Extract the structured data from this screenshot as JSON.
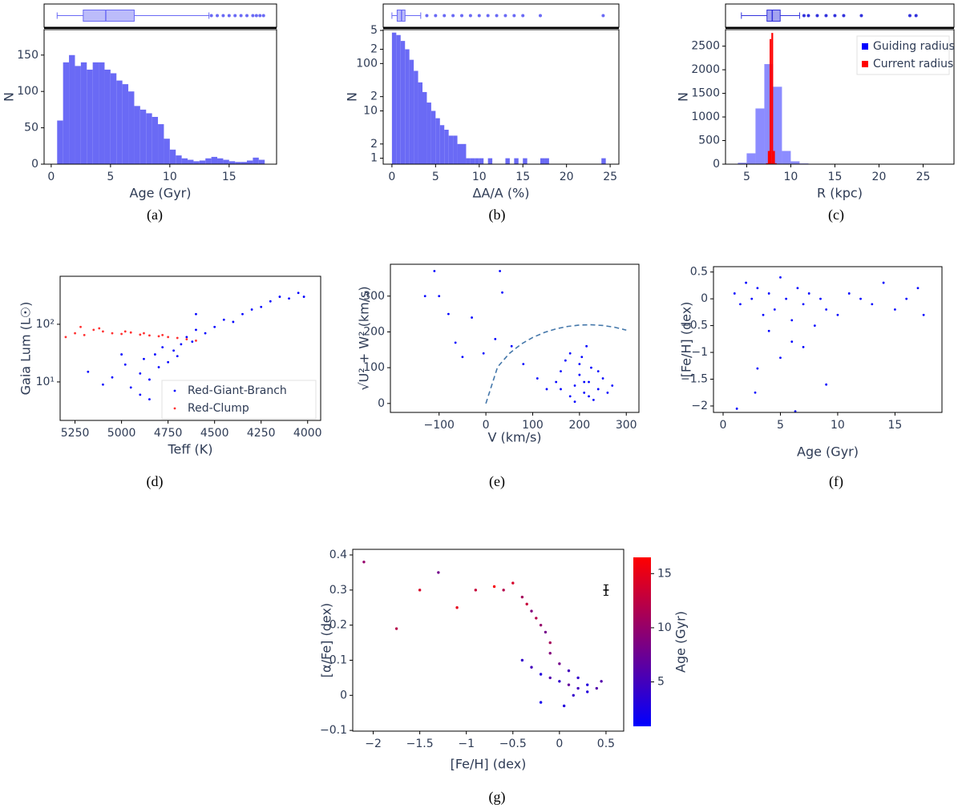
{
  "chart_data": [
    {
      "type": "histogram",
      "caption": "(a)",
      "xlabel": "Age (Gyr)",
      "ylabel": "N",
      "xlim": [
        -0.6,
        19
      ],
      "ylim": [
        0,
        185
      ],
      "xticks": [
        0,
        5,
        10,
        15
      ],
      "yticks": [
        0,
        50,
        100,
        150
      ],
      "series": [
        {
          "color": "#6a6af5",
          "bins": [
            0.5,
            1,
            1.5,
            2,
            2.5,
            3,
            3.5,
            4,
            4.5,
            5,
            5.5,
            6,
            6.5,
            7,
            7.5,
            8,
            8.5,
            9,
            9.5,
            10,
            10.5,
            11,
            11.5,
            12,
            12.5,
            13,
            13.5,
            14,
            14.5,
            15,
            15.5,
            16,
            16.5,
            17,
            17.5,
            18
          ],
          "values": [
            60,
            140,
            150,
            135,
            140,
            130,
            140,
            140,
            130,
            125,
            115,
            110,
            100,
            80,
            75,
            70,
            65,
            55,
            35,
            20,
            12,
            8,
            6,
            4,
            5,
            8,
            10,
            8,
            6,
            4,
            3,
            3,
            5,
            9,
            6
          ]
        }
      ],
      "boxplot": {
        "color": "#6a6af5",
        "whislo": 0.5,
        "q1": 2.7,
        "med": 4.6,
        "q3": 7.0,
        "whishi": 13.3,
        "fliers": [
          13.5,
          14,
          14.5,
          15,
          15.5,
          16,
          16.5,
          17,
          17.3,
          17.6,
          17.9
        ]
      }
    },
    {
      "type": "histogram",
      "caption": "(b)",
      "xlabel": "ΔA/A (%)",
      "ylabel": "N",
      "yscale": "log",
      "xlim": [
        -1,
        26
      ],
      "ylim": [
        0.75,
        520
      ],
      "xticks": [
        0,
        5,
        10,
        15,
        20,
        25
      ],
      "yticks": [
        1,
        2,
        10,
        {
          "value": 20,
          "label": "2"
        },
        100,
        {
          "value": 200,
          "label": "2"
        },
        {
          "value": 500,
          "label": "5"
        }
      ],
      "series": [
        {
          "color": "#6a6af5",
          "bins": [
            0,
            0.5,
            1,
            1.5,
            2,
            2.5,
            3,
            3.5,
            4,
            4.5,
            5,
            5.5,
            6,
            6.5,
            7,
            7.5,
            8,
            8.5,
            9,
            9.5,
            10,
            10.5,
            11,
            11.5,
            12,
            12.5,
            13,
            13.5,
            14,
            14.5,
            15,
            15.5,
            16,
            16.5,
            17,
            17.5,
            18,
            18.5,
            19,
            19.5,
            20,
            20.5,
            21,
            21.5,
            22,
            22.5,
            23,
            23.5,
            24,
            24.5,
            25
          ],
          "values": [
            450,
            400,
            300,
            200,
            120,
            70,
            40,
            25,
            15,
            10,
            7,
            5,
            4,
            3,
            3,
            2,
            2,
            1,
            1,
            1,
            1,
            0,
            1,
            0,
            0,
            0,
            1,
            0,
            1,
            0,
            1,
            0,
            0,
            0,
            1,
            1,
            0,
            0,
            0,
            0,
            0,
            0,
            0,
            0,
            0,
            0,
            0,
            0,
            1,
            0
          ]
        }
      ],
      "boxplot": {
        "color": "#6a6af5",
        "whislo": 0,
        "q1": 0.6,
        "med": 1.1,
        "q3": 1.5,
        "whishi": 3.3,
        "fliers": [
          4,
          5,
          6,
          7,
          8,
          9,
          10,
          11,
          12,
          13,
          14,
          15,
          17,
          24.2
        ]
      }
    },
    {
      "type": "histogram",
      "caption": "(c)",
      "xlabel": "R (kpc)",
      "ylabel": "N",
      "legend": "upper right",
      "xlim": [
        2.6,
        28.5
      ],
      "ylim": [
        0,
        2850
      ],
      "xticks": [
        5,
        10,
        15,
        20,
        25
      ],
      "yticks": [
        0,
        500,
        1000,
        1500,
        2000,
        2500
      ],
      "series": [
        {
          "name": "Guiding radius",
          "color": "#0000ff",
          "alpha": 0.45,
          "bins": [
            4,
            5,
            6,
            7,
            8,
            9,
            10,
            11,
            12,
            13
          ],
          "values": [
            30,
            230,
            1180,
            2120,
            1640,
            280,
            60,
            15,
            5
          ]
        },
        {
          "name": "Current radius",
          "color": "#ff0000",
          "alpha": 1,
          "bins": [
            7.2,
            7.4,
            7.6,
            7.8,
            8.0,
            8.2,
            8.4
          ],
          "values": [
            20,
            280,
            2650,
            2780,
            280,
            20
          ]
        }
      ],
      "boxplot": {
        "color": "#3333dd",
        "whislo": 4.4,
        "q1": 7.3,
        "med": 7.9,
        "q3": 8.8,
        "whishi": 11,
        "fliers": [
          11.5,
          12,
          13,
          14,
          15,
          16,
          18,
          23.5,
          24.2
        ]
      }
    },
    {
      "type": "scatter",
      "caption": "(d)",
      "xlabel": "Teff (K)",
      "ylabel": "Gaia Lum (L☉)",
      "yscale": "log",
      "legend": "lower right",
      "xlim": [
        5330,
        3930
      ],
      "ylim": [
        2.15,
        680
      ],
      "xticks": [
        5250,
        5000,
        4750,
        4500,
        4250,
        4000
      ],
      "yticks": [
        {
          "value": 10,
          "label": "10¹"
        },
        {
          "value": 100,
          "label": "10²"
        }
      ],
      "series": [
        {
          "name": "Red-Giant-Branch",
          "color": "#0000ff",
          "x": [
            5180,
            5100,
            5050,
            4980,
            4950,
            4900,
            4880,
            4850,
            4820,
            4800,
            4780,
            4750,
            4720,
            4700,
            4680,
            4650,
            4620,
            4600,
            4550,
            4500,
            4450,
            4400,
            4350,
            4300,
            4250,
            4200,
            4150,
            4100,
            4050,
            4020,
            4900,
            4700,
            4850,
            4600,
            5000
          ],
          "y": [
            15,
            9,
            12,
            20,
            8,
            14,
            25,
            11,
            30,
            18,
            40,
            22,
            35,
            28,
            45,
            60,
            50,
            80,
            70,
            90,
            120,
            110,
            150,
            180,
            200,
            250,
            300,
            280,
            350,
            300,
            6,
            10,
            5,
            150,
            30
          ]
        },
        {
          "name": "Red-Clump",
          "color": "#ff3030",
          "x": [
            5300,
            5250,
            5200,
            5150,
            5100,
            5050,
            5000,
            4950,
            4900,
            4850,
            4800,
            4750,
            4700,
            4650,
            4600,
            5220,
            5120,
            4980,
            4880,
            4780
          ],
          "y": [
            60,
            70,
            65,
            80,
            75,
            70,
            68,
            72,
            66,
            64,
            62,
            60,
            58,
            55,
            52,
            90,
            85,
            75,
            70,
            65
          ]
        }
      ]
    },
    {
      "type": "scatter",
      "caption": "(e)",
      "xlabel": "V (km/s)",
      "ylabel": "√U² + W² (km/s)",
      "xlim": [
        -204,
        327
      ],
      "ylim": [
        -25,
        389
      ],
      "xticks": [
        {
          "value": -100,
          "label": "−100"
        },
        0,
        100,
        200,
        300
      ],
      "yticks": [
        0,
        100,
        200,
        300
      ],
      "series": [
        {
          "color": "#0000ff",
          "x": [
            -130,
            -110,
            -100,
            -80,
            -65,
            -50,
            -30,
            -5,
            20,
            30,
            35,
            55,
            80,
            110,
            130,
            150,
            160,
            170,
            180,
            190,
            200,
            205,
            210,
            215,
            220,
            225,
            230,
            240,
            250,
            260,
            270,
            180,
            200,
            220,
            240,
            160,
            190,
            210
          ],
          "y": [
            300,
            370,
            300,
            250,
            170,
            130,
            240,
            140,
            180,
            370,
            310,
            160,
            110,
            70,
            40,
            60,
            90,
            120,
            20,
            50,
            80,
            130,
            30,
            160,
            60,
            100,
            10,
            40,
            70,
            30,
            50,
            140,
            110,
            20,
            90,
            40,
            5,
            60
          ]
        },
        {
          "color": "#4477aa",
          "style": "dashed",
          "x": [
            0,
            25,
            50,
            75,
            100,
            125,
            150,
            175,
            200,
            225,
            250,
            275,
            300
          ],
          "y": [
            0,
            101.9,
            139.6,
            165.5,
            184.4,
            198.4,
            208.6,
            215.3,
            219.1,
            219.9,
            217.9,
            213.0,
            205.0
          ]
        }
      ]
    },
    {
      "type": "scatter",
      "caption": "(f)",
      "xlabel": "Age (Gyr)",
      "ylabel": "[Fe/H] (dex)",
      "xlim": [
        -0.84,
        19.1
      ],
      "ylim": [
        -2.12,
        0.6
      ],
      "xticks": [
        0,
        5,
        10,
        15
      ],
      "yticks": [
        0.5,
        0,
        {
          "value": -0.5,
          "label": "−0.5"
        },
        {
          "value": -1,
          "label": "−1"
        },
        {
          "value": -1.5,
          "label": "−1.5"
        },
        {
          "value": -2,
          "label": "−2"
        }
      ],
      "series": [
        {
          "color": "#0000ff",
          "x": [
            1,
            1.5,
            2,
            2.5,
            3,
            3.5,
            4,
            4.5,
            5,
            5.5,
            6,
            6.5,
            7,
            7.5,
            8,
            8.5,
            9,
            10,
            11,
            12,
            13,
            14,
            15,
            16,
            17,
            17.5,
            3,
            5,
            7,
            4,
            6,
            9,
            1.2,
            2.8,
            6.3
          ],
          "y": [
            0.1,
            -0.1,
            0.3,
            0,
            0.2,
            -0.3,
            0.1,
            -0.2,
            0.4,
            0,
            -0.4,
            0.2,
            -0.1,
            0.1,
            -0.5,
            0,
            -0.2,
            -0.3,
            0.1,
            0,
            -0.1,
            0.3,
            -0.2,
            0,
            0.2,
            -0.3,
            -1.3,
            -1.1,
            -0.9,
            -0.6,
            -0.8,
            -1.6,
            -2.05,
            -1.75,
            -2.1
          ]
        }
      ]
    },
    {
      "type": "scatter",
      "caption": "(g)",
      "xlabel": "[Fe/H] (dex)",
      "ylabel": "[α/Fe] (dex)",
      "xlim": [
        -2.22,
        0.69
      ],
      "ylim": [
        -0.102,
        0.416
      ],
      "xticks": [
        {
          "value": -2,
          "label": "−2"
        },
        {
          "value": -1.5,
          "label": "−1.5"
        },
        {
          "value": -1,
          "label": "−1"
        },
        {
          "value": -0.5,
          "label": "−0.5"
        },
        0,
        0.5
      ],
      "yticks": [
        {
          "value": -0.1,
          "label": "−0.1"
        },
        0,
        0.1,
        0.2,
        0.3,
        0.4
      ],
      "colorbar": {
        "label": "Age (Gyr)",
        "clim": [
          0.9,
          16.5
        ],
        "cticks": [
          5,
          10,
          15
        ],
        "cmap": [
          "#0000ff",
          "#ff0000"
        ]
      },
      "errorbar": {
        "x": 0.5,
        "y": 0.3,
        "xerr": 0.03,
        "yerr": 0.015
      },
      "series": [
        {
          "x": [
            -2.1,
            -1.75,
            -1.5,
            -1.3,
            -1.1,
            -0.9,
            -0.7,
            -0.6,
            -0.5,
            -0.4,
            -0.35,
            -0.3,
            -0.25,
            -0.2,
            -0.15,
            -0.1,
            -0.4,
            -0.3,
            -0.2,
            -0.1,
            0,
            0.1,
            0.2,
            0.3,
            0.4,
            -0.1,
            0,
            0.1,
            0.2,
            0.3,
            0.45,
            -0.2,
            0.05,
            0.15
          ],
          "y": [
            0.38,
            0.19,
            0.3,
            0.35,
            0.25,
            0.3,
            0.31,
            0.3,
            0.32,
            0.28,
            0.26,
            0.24,
            0.22,
            0.2,
            0.18,
            0.15,
            0.1,
            0.08,
            0.06,
            0.05,
            0.04,
            0.03,
            0.02,
            0.03,
            0.02,
            0.12,
            0.09,
            0.07,
            0.05,
            0.01,
            0.04,
            -0.02,
            -0.03,
            0.0
          ],
          "c": [
            10,
            12,
            14,
            8,
            15,
            13,
            16,
            12,
            14,
            11,
            13,
            9,
            12,
            10,
            8,
            11,
            4,
            5,
            3,
            6,
            4,
            7,
            5,
            3,
            6,
            9,
            8,
            5,
            4,
            3,
            6,
            2,
            3,
            4
          ]
        }
      ]
    }
  ]
}
